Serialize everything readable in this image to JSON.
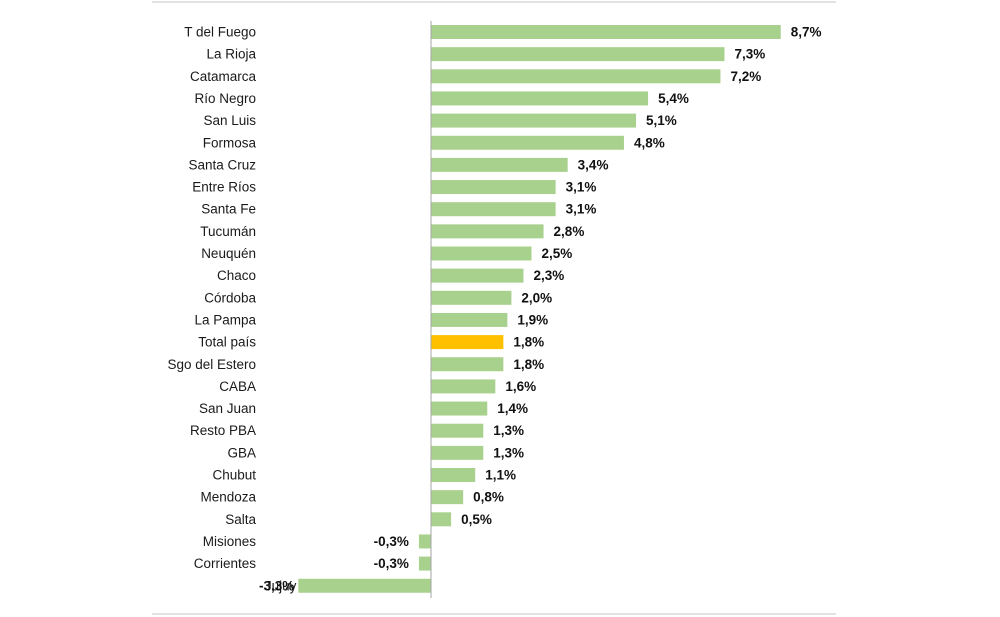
{
  "chart_data": {
    "type": "bar",
    "orientation": "horizontal",
    "categories": [
      "T del Fuego",
      "La Rioja",
      "Catamarca",
      "Río Negro",
      "San Luis",
      "Formosa",
      "Santa Cruz",
      "Entre Ríos",
      "Santa Fe",
      "Tucumán",
      "Neuquén",
      "Chaco",
      "Córdoba",
      "La Pampa",
      "Total país",
      "Sgo del Estero",
      "CABA",
      "San Juan",
      "Resto PBA",
      "GBA",
      "Chubut",
      "Mendoza",
      "Salta",
      "Misiones",
      "Corrientes",
      "Jujuy"
    ],
    "values": [
      8.7,
      7.3,
      7.2,
      5.4,
      5.1,
      4.8,
      3.4,
      3.1,
      3.1,
      2.8,
      2.5,
      2.3,
      2.0,
      1.9,
      1.8,
      1.8,
      1.6,
      1.4,
      1.3,
      1.3,
      1.1,
      0.8,
      0.5,
      -0.3,
      -0.3,
      -3.3
    ],
    "value_labels": [
      "8,7%",
      "7,3%",
      "7,2%",
      "5,4%",
      "5,1%",
      "4,8%",
      "3,4%",
      "3,1%",
      "3,1%",
      "2,8%",
      "2,5%",
      "2,3%",
      "2,0%",
      "1,9%",
      "1,8%",
      "1,8%",
      "1,6%",
      "1,4%",
      "1,3%",
      "1,3%",
      "1,1%",
      "0,8%",
      "0,5%",
      "-0,3%",
      "-0,3%",
      "-3,3%"
    ],
    "highlight_category": "Total país",
    "colors": {
      "bar": "#a9d18e",
      "highlight": "#ffc000",
      "axis": "#a6a6a6",
      "frame": "#d9d9d9"
    },
    "grid": false,
    "legend": "none",
    "xlim": [
      -3.3,
      8.7
    ]
  }
}
